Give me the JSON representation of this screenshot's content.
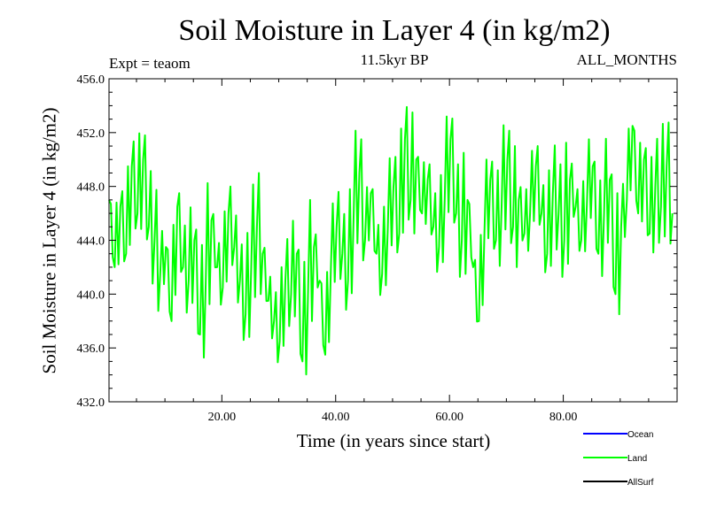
{
  "chart_data": {
    "type": "line",
    "title": "Soil Moisture in Layer 4 (in kg/m2)",
    "subtitle": "11.5kyr BP",
    "experiment": "Expt = teaom",
    "period": "ALL_MONTHS",
    "xlabel": "Time (in years since start)",
    "ylabel": "Soil Moisture in Layer 4 (in kg/m2)",
    "xlim": [
      0.17,
      100
    ],
    "ylim": [
      432.0,
      456.0
    ],
    "xticks": [
      20.0,
      40.0,
      60.0,
      80.0
    ],
    "xtick_labels": [
      "20.00",
      "40.00",
      "60.00",
      "80.00"
    ],
    "yticks": [
      432.0,
      436.0,
      440.0,
      444.0,
      448.0,
      452.0,
      456.0
    ],
    "ytick_labels": [
      "432.0",
      "436.0",
      "440.0",
      "444.0",
      "448.0",
      "452.0",
      "456.0"
    ],
    "legend": [
      {
        "name": "Ocean",
        "color": "#0000ff"
      },
      {
        "name": "Land",
        "color": "#00ff00"
      },
      {
        "name": "AllSurf",
        "color": "#000000"
      }
    ],
    "series": [
      {
        "name": "Land",
        "color": "#00ff00",
        "x_start": 0.17,
        "x_step": 1.0,
        "sample_note": "approximate yearly samples of a monthly series",
        "values": [
          447.0,
          442.0,
          446.5,
          443.0,
          449.5,
          446.0,
          450.0,
          445.0,
          444.0,
          441.5,
          443.5,
          438.0,
          446.5,
          442.0,
          441.0,
          444.0,
          437.0,
          441.0,
          445.5,
          442.0,
          440.5,
          446.0,
          443.5,
          441.0,
          438.5,
          442.0,
          445.0,
          443.0,
          439.5,
          438.0,
          436.5,
          441.0,
          440.0,
          443.0,
          435.0,
          440.5,
          443.5,
          441.0,
          435.5,
          442.0,
          445.0,
          443.0,
          441.0,
          446.0,
          449.0,
          444.0,
          447.5,
          443.0,
          441.5,
          445.0,
          448.0,
          444.5,
          451.5,
          447.0,
          450.0,
          446.0,
          448.5,
          445.0,
          443.5,
          447.0,
          451.5,
          446.0,
          444.0,
          447.0,
          442.0,
          438.0,
          445.0,
          448.5,
          444.0,
          446.5,
          450.0,
          445.0,
          447.0,
          444.5,
          446.0,
          449.5,
          446.0,
          443.0,
          447.5,
          446.0,
          444.0,
          448.5,
          446.5,
          444.0,
          447.0,
          449.5,
          443.0,
          446.0,
          448.5,
          440.0,
          445.0,
          447.0,
          452.5,
          446.0,
          450.0,
          444.5,
          448.0,
          446.5,
          449.5,
          446.0
        ]
      }
    ]
  }
}
